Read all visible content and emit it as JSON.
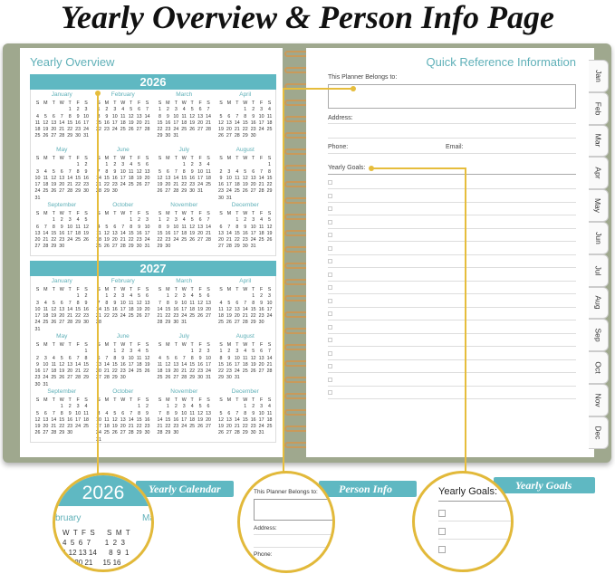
{
  "title": "Yearly Overview & Person Info Page",
  "left_page": {
    "heading": "Yearly Overview",
    "years": [
      "2026",
      "2027"
    ],
    "weekdays": [
      "S",
      "M",
      "T",
      "W",
      "T",
      "F",
      "S"
    ],
    "months": [
      "January",
      "February",
      "March",
      "April",
      "May",
      "June",
      "July",
      "August",
      "September",
      "October",
      "November",
      "December"
    ]
  },
  "right_page": {
    "heading": "Quick Reference Information",
    "belongs_to": "This Planner Belongs to:",
    "address": "Address:",
    "phone": "Phone:",
    "email": "Email:",
    "goals": "Yearly Goals:",
    "goal_checkbox_count": 17
  },
  "tabs": [
    "Jan",
    "Feb",
    "Mar",
    "Apr",
    "May",
    "Jun",
    "Jul",
    "Aug",
    "Sep",
    "Oct",
    "Nov",
    "Dec"
  ],
  "callouts": {
    "calendar": {
      "label": "Yearly Calendar",
      "year": "2026",
      "month_a": "bruary",
      "month_b": "Ma"
    },
    "person": {
      "label": "Person Info",
      "belongs_to": "This Planner Belongs to:",
      "address": "Address:",
      "phone": "Phone:"
    },
    "goals": {
      "label": "Yearly Goals",
      "text": "Yearly Goals:"
    }
  },
  "colors": {
    "accent": "#5fb8c2",
    "cover": "#9fa88e",
    "highlight": "#e6bd3c",
    "spiral": "#c99a5a"
  }
}
